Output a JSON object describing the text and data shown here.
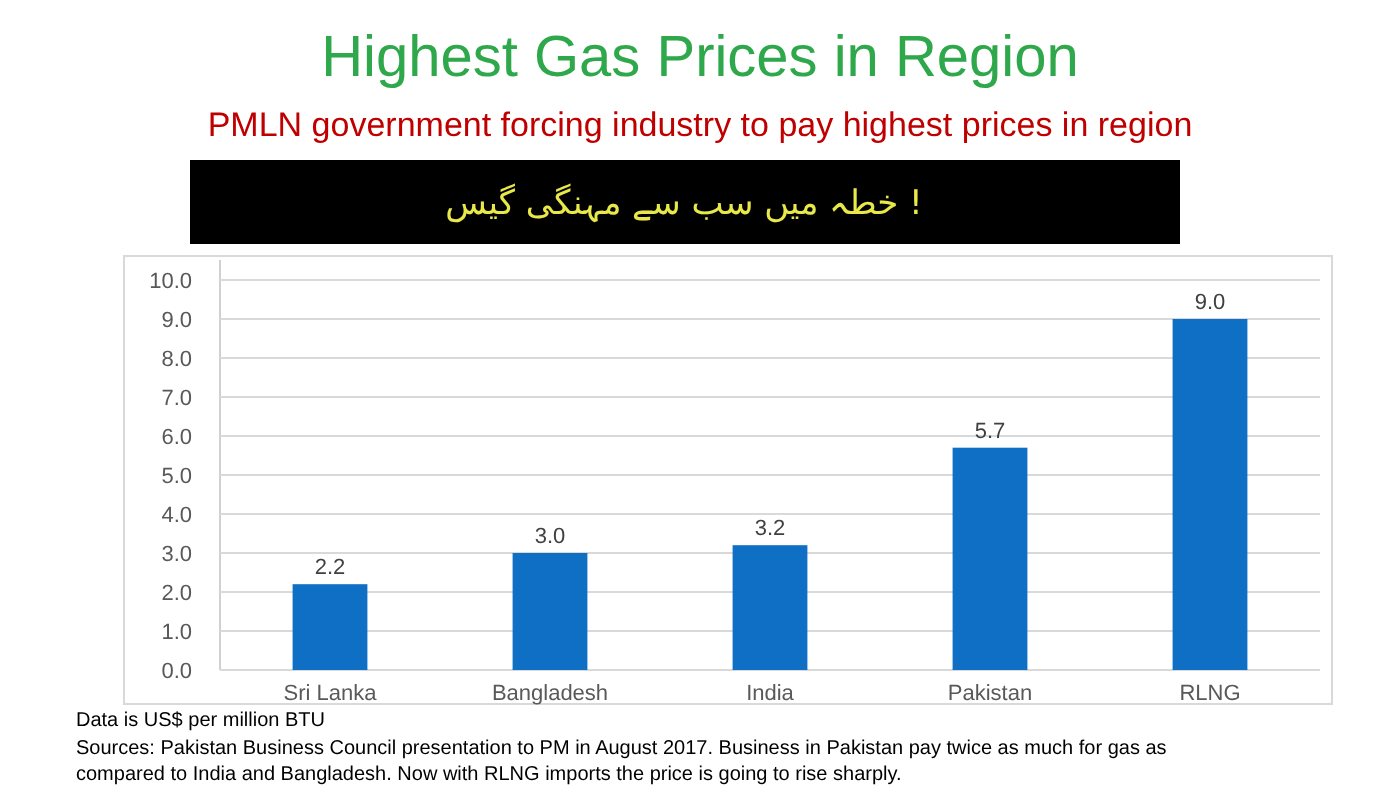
{
  "chart_data": {
    "type": "bar",
    "title": "Highest Gas Prices in Region",
    "subtitle": "PMLN government forcing industry to pay highest prices in region",
    "annotations": [
      "خطہ میں سب سے مہنگی گیس !",
      "Data is US$ per million BTU",
      "Sources: Pakistan Business Council presentation to PM in August 2017.  Business in Pakistan pay twice as much for gas as compared to India and Bangladesh. Now with RLNG imports the price is going to rise sharply."
    ],
    "categories": [
      "Sri Lanka",
      "Bangladesh",
      "India",
      "Pakistan",
      "RLNG"
    ],
    "values": [
      2.2,
      3.0,
      3.2,
      5.7,
      9.0
    ],
    "color": "#0e6fc4",
    "ylim": [
      0,
      10
    ],
    "yticks": [
      {
        "value": 0,
        "label": "0.0"
      },
      {
        "value": 1,
        "label": "1.0"
      },
      {
        "value": 2,
        "label": "2.0"
      },
      {
        "value": 3,
        "label": "3.0"
      },
      {
        "value": 4,
        "label": "4.0"
      },
      {
        "value": 5,
        "label": "5.0"
      },
      {
        "value": 6,
        "label": "6.0"
      },
      {
        "value": 7,
        "label": "7.0"
      },
      {
        "value": 8,
        "label": "8.0"
      },
      {
        "value": 9,
        "label": "9.0"
      },
      {
        "value": 10,
        "label": "10.0"
      }
    ],
    "value_labels": [
      "2.2",
      "3.0",
      "3.2",
      "5.7",
      "9.0"
    ],
    "grid": "y"
  }
}
